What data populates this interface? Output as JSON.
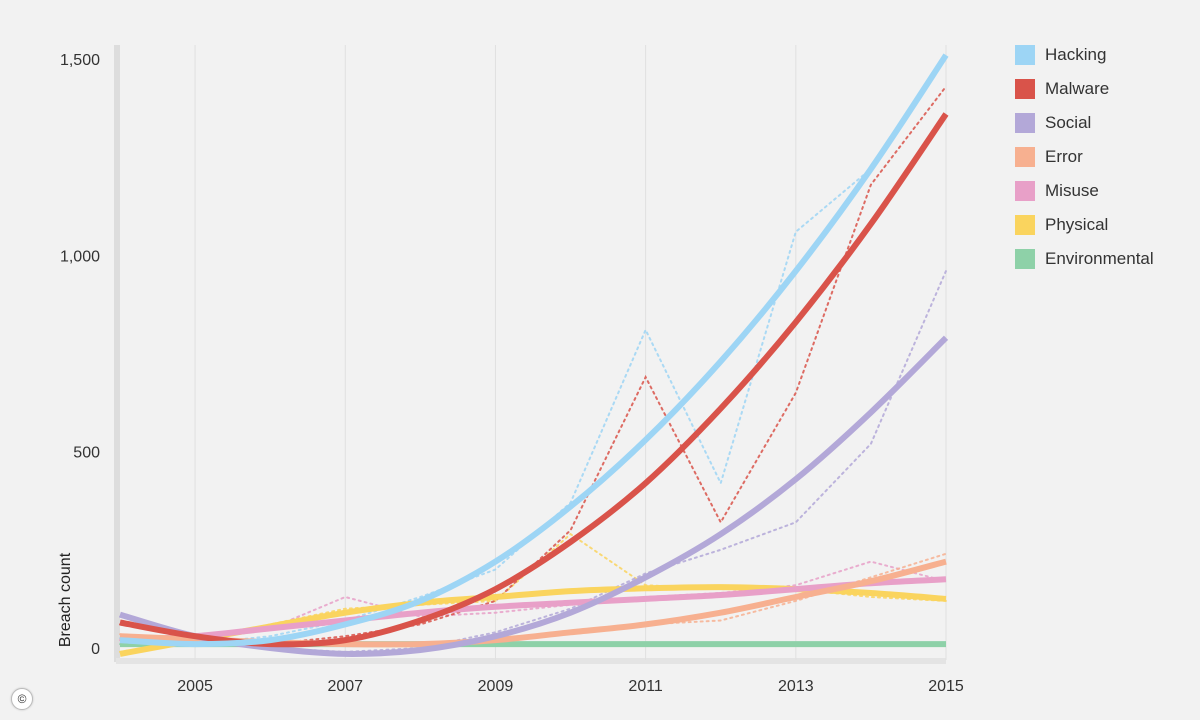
{
  "copyright_symbol": "©",
  "chart_data": {
    "type": "line",
    "ylabel": "Breach count",
    "xlabel": "",
    "xlim": [
      2004,
      2015
    ],
    "ylim": [
      -30,
      1540
    ],
    "x_ticks": [
      2005,
      2007,
      2009,
      2011,
      2013,
      2015
    ],
    "x_tick_labels": [
      "2005",
      "2007",
      "2009",
      "2011",
      "2013",
      "2015"
    ],
    "y_ticks": [
      0,
      500,
      1000,
      1500
    ],
    "y_tick_labels": [
      "0",
      "500",
      "1,000",
      "1,500"
    ],
    "grid": "vertical",
    "legend_position": "top-right",
    "series": [
      {
        "name": "Hacking",
        "color": "#9dd5f5",
        "x": [
          2004,
          2005,
          2006,
          2007,
          2008,
          2009,
          2010,
          2011,
          2012,
          2013,
          2014,
          2015
        ],
        "trend": [
          20,
          10,
          20,
          60,
          120,
          220,
          360,
          530,
          730,
          960,
          1220,
          1510
        ],
        "actual": [
          25,
          10,
          30,
          70,
          130,
          200,
          370,
          810,
          420,
          1060,
          1220,
          1510
        ]
      },
      {
        "name": "Malware",
        "color": "#d9534a",
        "x": [
          2004,
          2005,
          2006,
          2007,
          2008,
          2009,
          2010,
          2011,
          2012,
          2013,
          2014,
          2015
        ],
        "trend": [
          65,
          30,
          10,
          20,
          70,
          150,
          270,
          420,
          610,
          830,
          1080,
          1360
        ],
        "actual": [
          60,
          30,
          10,
          30,
          60,
          120,
          300,
          690,
          320,
          650,
          1180,
          1430
        ]
      },
      {
        "name": "Social",
        "color": "#b3a8d8",
        "x": [
          2004,
          2005,
          2006,
          2007,
          2008,
          2009,
          2010,
          2011,
          2012,
          2013,
          2014,
          2015
        ],
        "trend": [
          85,
          30,
          0,
          -15,
          -5,
          30,
          90,
          180,
          290,
          430,
          600,
          790
        ],
        "actual": [
          80,
          30,
          0,
          -10,
          0,
          40,
          100,
          190,
          250,
          320,
          520,
          960
        ]
      },
      {
        "name": "Error",
        "color": "#f7b090",
        "x": [
          2004,
          2005,
          2006,
          2007,
          2008,
          2009,
          2010,
          2011,
          2012,
          2013,
          2014,
          2015
        ],
        "trend": [
          30,
          22,
          15,
          10,
          10,
          20,
          40,
          60,
          90,
          130,
          170,
          220
        ],
        "actual": [
          35,
          20,
          10,
          15,
          10,
          25,
          40,
          60,
          70,
          120,
          180,
          240
        ]
      },
      {
        "name": "Misuse",
        "color": "#e8a0c8",
        "x": [
          2004,
          2005,
          2006,
          2007,
          2008,
          2009,
          2010,
          2011,
          2012,
          2013,
          2014,
          2015
        ],
        "trend": [
          20,
          30,
          50,
          70,
          90,
          105,
          115,
          125,
          135,
          150,
          165,
          175
        ],
        "actual": [
          20,
          30,
          50,
          130,
          80,
          90,
          110,
          130,
          140,
          160,
          220,
          170
        ]
      },
      {
        "name": "Physical",
        "color": "#fad45e",
        "x": [
          2004,
          2005,
          2006,
          2007,
          2008,
          2009,
          2010,
          2011,
          2012,
          2013,
          2014,
          2015
        ],
        "trend": [
          -15,
          20,
          55,
          90,
          115,
          130,
          145,
          152,
          155,
          150,
          140,
          125
        ],
        "actual": [
          -10,
          20,
          60,
          100,
          110,
          120,
          290,
          160,
          150,
          150,
          130,
          120
        ]
      },
      {
        "name": "Environmental",
        "color": "#8ed1a8",
        "x": [
          2004,
          2005,
          2006,
          2007,
          2008,
          2009,
          2010,
          2011,
          2012,
          2013,
          2014,
          2015
        ],
        "trend": [
          10,
          10,
          10,
          10,
          10,
          10,
          10,
          10,
          10,
          10,
          10,
          10
        ],
        "actual": [
          10,
          10,
          10,
          10,
          10,
          10,
          10,
          10,
          10,
          10,
          10,
          10
        ]
      }
    ]
  }
}
